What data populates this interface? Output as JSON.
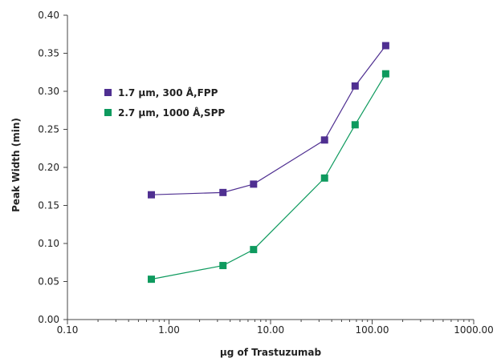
{
  "chart_data": {
    "type": "scatter",
    "title": "",
    "xlabel": "µg of Trastuzumab",
    "ylabel": "Peak Width (min)",
    "xscale": "log",
    "xlim": [
      0.1,
      1000
    ],
    "ylim": [
      0,
      0.4
    ],
    "x_ticks": [
      "0.10",
      "1.00",
      "10.00",
      "100.00",
      "1000.00"
    ],
    "y_ticks": [
      "0.00",
      "0.05",
      "0.10",
      "0.15",
      "0.20",
      "0.25",
      "0.30",
      "0.35",
      "0.40"
    ],
    "grid": false,
    "legend_position": "top-left",
    "series": [
      {
        "name": "1.7 µm, 300 Å,FPP",
        "color": "#4f2f91",
        "marker": "square",
        "x": [
          0.67,
          3.4,
          6.8,
          34,
          68,
          136
        ],
        "y": [
          0.164,
          0.167,
          0.178,
          0.236,
          0.307,
          0.36
        ]
      },
      {
        "name": "2.7 µm, 1000 Å,SPP",
        "color": "#0e9a5e",
        "marker": "square",
        "x": [
          0.67,
          3.4,
          6.8,
          34,
          68,
          136
        ],
        "y": [
          0.053,
          0.071,
          0.092,
          0.186,
          0.256,
          0.323
        ]
      }
    ]
  }
}
